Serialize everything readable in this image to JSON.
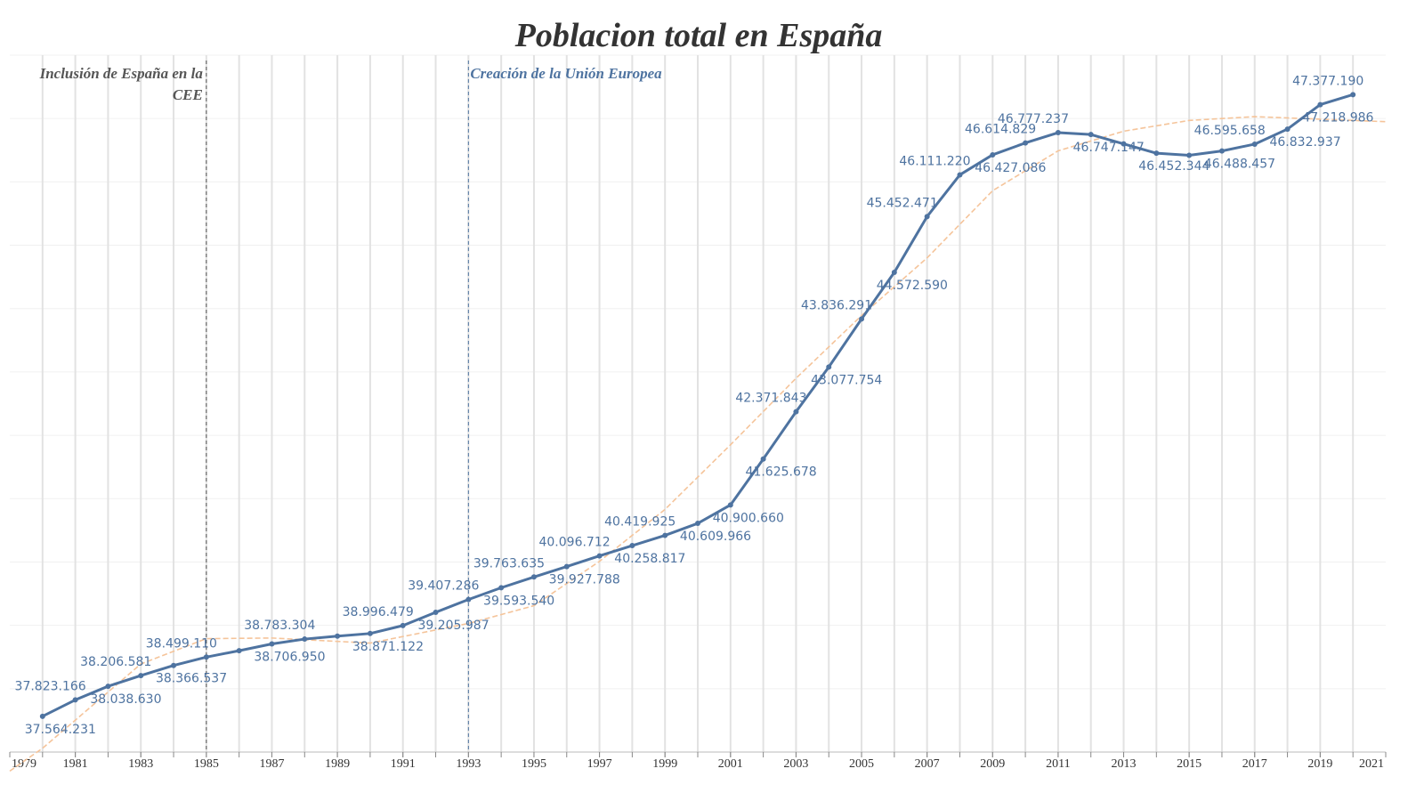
{
  "chart_data": {
    "type": "line",
    "title": "Poblacion total en España",
    "x": [
      1980,
      1981,
      1982,
      1983,
      1984,
      1985,
      1986,
      1987,
      1988,
      1989,
      1990,
      1991,
      1992,
      1993,
      1994,
      1995,
      1996,
      1997,
      1998,
      1999,
      2000,
      2001,
      2002,
      2003,
      2004,
      2005,
      2006,
      2007,
      2008,
      2009,
      2010,
      2011,
      2012,
      2013,
      2014,
      2015,
      2016,
      2017,
      2018,
      2019,
      2020
    ],
    "series": [
      {
        "color": "#4e73a0",
        "values": [
          37564231,
          37823166,
          38038630,
          38206581,
          38366537,
          38499110,
          38600000,
          38706950,
          38783304,
          38830000,
          38871122,
          38996479,
          39205987,
          39407286,
          39593540,
          39763635,
          39927788,
          40096712,
          40258817,
          40419925,
          40609966,
          40900660,
          41625678,
          42371843,
          43077754,
          43836291,
          44572590,
          45452471,
          46111220,
          46427086,
          46614829,
          46777237,
          46747147,
          46600000,
          46452344,
          46420000,
          46488457,
          46595658,
          46832937,
          47218986,
          47377190
        ],
        "value_labels": [
          "37.564.231",
          "37.823.166",
          "38.038.630",
          "38.206.581",
          "38.366.537",
          "38.499.110",
          null,
          "38.706.950",
          "38.783.304",
          null,
          "38.871.122",
          "38.996.479",
          "39.205.987",
          "39.407.286",
          "39.593.540",
          "39.763.635",
          "39.927.788",
          "40.096.712",
          "40.258.817",
          "40.419.925",
          "40.609.966",
          "40.900.660",
          "41.625.678",
          "42.371.843",
          "43.077.754",
          "43.836.291",
          "44.572.590",
          "45.452.471",
          "46.111.220",
          "46.427.086",
          "46.614.829",
          "46.777.237",
          "46.747.147",
          null,
          "46.452.344",
          null,
          "46.488.457",
          "46.595.658",
          "46.832.937",
          "47.218.986",
          "47.377.190"
        ]
      }
    ],
    "trendline": {
      "color": "#f5c49a",
      "x": [
        1979,
        1980,
        1983,
        1985,
        1987,
        1990,
        1993,
        1995,
        1997,
        1999,
        2001,
        2003,
        2005,
        2007,
        2009,
        2011,
        2013,
        2015,
        2017,
        2019,
        2021
      ],
      "values": [
        36700000,
        37060000,
        38390000,
        38790000,
        38800000,
        38720000,
        39030000,
        39310000,
        40010000,
        40830000,
        41850000,
        42900000,
        43890000,
        44800000,
        45860000,
        46490000,
        46800000,
        46970000,
        47030000,
        46990000,
        46950000
      ]
    },
    "annotations": [
      {
        "x": 1985,
        "lines": [
          "Inclusión de España en la",
          "CEE"
        ],
        "color": "#555555",
        "align": "left"
      },
      {
        "x": 1993,
        "lines": [
          "Creación de la Unión Europea"
        ],
        "color": "#4e73a0",
        "align": "right"
      }
    ],
    "xlim": [
      1979,
      2021
    ],
    "xticks": [
      1979,
      1981,
      1983,
      1985,
      1987,
      1989,
      1991,
      1993,
      1995,
      1997,
      1999,
      2001,
      2003,
      2005,
      2007,
      2009,
      2011,
      2013,
      2015,
      2017,
      2019,
      2021
    ],
    "ylim": [
      37000000,
      48000000
    ],
    "yticks": [
      37000000,
      38000000,
      39000000,
      40000000,
      41000000,
      42000000,
      43000000,
      44000000,
      45000000,
      46000000,
      47000000,
      48000000
    ],
    "grid": true
  }
}
